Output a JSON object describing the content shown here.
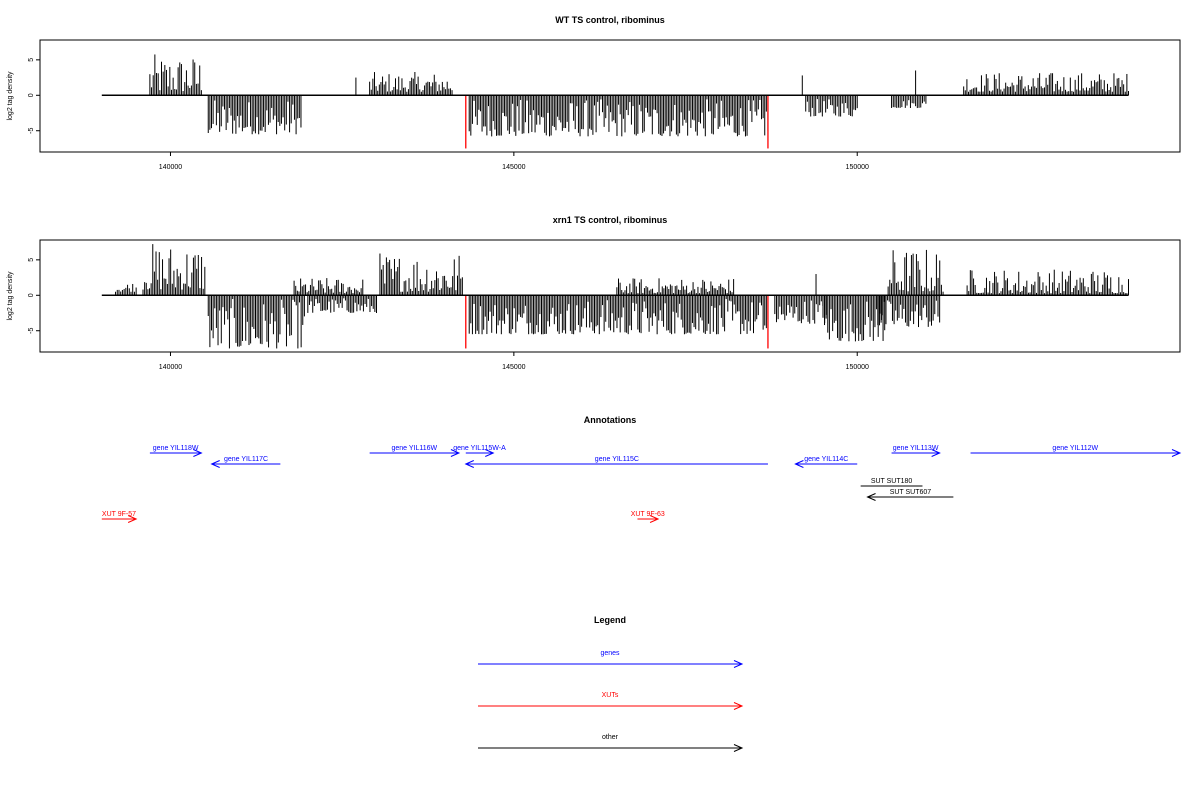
{
  "chart_data": [
    {
      "type": "bar",
      "title": "WT TS control, ribominus",
      "ylabel": "log2 tag density",
      "xlim": [
        138100,
        154700
      ],
      "ylim": [
        -8,
        7.8
      ],
      "x_ticks": [
        140000,
        145000,
        150000
      ],
      "x_tick_labels": [
        "140000",
        "145000",
        "150000"
      ],
      "y_ticks": [
        -5,
        0,
        5
      ],
      "y_tick_labels": [
        "-5",
        "0",
        "5"
      ],
      "baseline_range": [
        139000,
        153950
      ],
      "marker_color": "#ff0000",
      "markers": [
        {
          "x": 144300,
          "value": -7.5
        },
        {
          "x": 148700,
          "value": -7.5
        }
      ],
      "clusters": [
        {
          "from": 139700,
          "to": 140450,
          "min": 0.5,
          "max": 5.8
        },
        {
          "from": 140550,
          "to": 141900,
          "min": -5.5,
          "max": -0.5
        },
        {
          "from": 142700,
          "to": 142700,
          "min": 2.5,
          "max": 2.5
        },
        {
          "from": 142900,
          "to": 144100,
          "min": 0.5,
          "max": 3.3
        },
        {
          "from": 144350,
          "to": 148700,
          "min": -5.8,
          "max": -0.5
        },
        {
          "from": 149200,
          "to": 149200,
          "min": 2.8,
          "max": 2.8
        },
        {
          "from": 149250,
          "to": 150000,
          "min": -3.0,
          "max": -0.5
        },
        {
          "from": 150500,
          "to": 151000,
          "min": -1.8,
          "max": -0.5
        },
        {
          "from": 150850,
          "to": 150850,
          "min": 3.5,
          "max": 3.5
        },
        {
          "from": 151550,
          "to": 153950,
          "min": 0.5,
          "max": 3.3
        }
      ]
    },
    {
      "type": "bar",
      "title": "xrn1 TS control, ribominus",
      "ylabel": "log2 tag density",
      "xlim": [
        138100,
        154700
      ],
      "ylim": [
        -8,
        7.8
      ],
      "x_ticks": [
        140000,
        145000,
        150000
      ],
      "x_tick_labels": [
        "140000",
        "145000",
        "150000"
      ],
      "y_ticks": [
        -5,
        0,
        5
      ],
      "y_tick_labels": [
        "-5",
        "0",
        "5"
      ],
      "baseline_range": [
        139000,
        153950
      ],
      "marker_color": "#ff0000",
      "markers": [
        {
          "x": 144300,
          "value": -7.5
        },
        {
          "x": 148700,
          "value": -7.5
        }
      ],
      "clusters": [
        {
          "from": 139200,
          "to": 139500,
          "min": 0.5,
          "max": 2.0
        },
        {
          "from": 139600,
          "to": 140500,
          "min": 0.8,
          "max": 7.5
        },
        {
          "from": 140550,
          "to": 141950,
          "min": -7.5,
          "max": -0.5
        },
        {
          "from": 141800,
          "to": 142800,
          "min": 0.3,
          "max": 2.5
        },
        {
          "from": 142000,
          "to": 143000,
          "min": -2.5,
          "max": -0.3
        },
        {
          "from": 143050,
          "to": 144250,
          "min": 0.5,
          "max": 6.2
        },
        {
          "from": 144350,
          "to": 148700,
          "min": -5.5,
          "max": -0.5
        },
        {
          "from": 146500,
          "to": 148200,
          "min": 0.3,
          "max": 2.5
        },
        {
          "from": 148800,
          "to": 149550,
          "min": -4.0,
          "max": -0.3
        },
        {
          "from": 149500,
          "to": 150400,
          "min": -6.5,
          "max": -0.5
        },
        {
          "from": 149400,
          "to": 149400,
          "min": 3.0,
          "max": 3.0
        },
        {
          "from": 150300,
          "to": 151200,
          "min": -4.5,
          "max": -0.5
        },
        {
          "from": 150450,
          "to": 151250,
          "min": 0.5,
          "max": 6.8
        },
        {
          "from": 151600,
          "to": 153950,
          "min": 0.3,
          "max": 3.8
        }
      ]
    }
  ],
  "annotations": {
    "title": "Annotations",
    "xlim": [
      138100,
      154700
    ],
    "items": [
      {
        "label": "gene YIL118W",
        "from": 139700,
        "to": 140450,
        "dir": "right",
        "color": "#0000ff",
        "row": 1
      },
      {
        "label": "gene YIL117C",
        "from": 140600,
        "to": 141600,
        "dir": "left",
        "color": "#0000ff",
        "row": 2
      },
      {
        "label": "gene YIL116W",
        "from": 142900,
        "to": 144200,
        "dir": "right",
        "color": "#0000ff",
        "row": 1
      },
      {
        "label": "gene YIL115W-A",
        "from": 144300,
        "to": 144700,
        "dir": "right",
        "color": "#0000ff",
        "row": 1
      },
      {
        "label": "gene YIL115C",
        "from": 144300,
        "to": 148700,
        "dir": "left",
        "color": "#0000ff",
        "row": 2
      },
      {
        "label": "gene YIL114C",
        "from": 149100,
        "to": 150000,
        "dir": "left",
        "color": "#0000ff",
        "row": 2
      },
      {
        "label": "gene YIL113W",
        "from": 150500,
        "to": 151200,
        "dir": "right",
        "color": "#0000ff",
        "row": 1
      },
      {
        "label": "gene YIL112W",
        "from": 151650,
        "to": 154700,
        "dir": "right",
        "color": "#0000ff",
        "row": 1
      },
      {
        "label": "SUT SUT180",
        "from": 150050,
        "to": 150950,
        "dir": "none",
        "color": "#000000",
        "row": 4
      },
      {
        "label": "SUT SUT607",
        "from": 150150,
        "to": 151400,
        "dir": "left",
        "color": "#000000",
        "row": 5
      },
      {
        "label": "XUT 9F-57",
        "from": 139000,
        "to": 139500,
        "dir": "right",
        "color": "#ff0000",
        "row": 7
      },
      {
        "label": "XUT 9F-63",
        "from": 146800,
        "to": 147100,
        "dir": "right",
        "color": "#ff0000",
        "row": 7
      }
    ]
  },
  "legend": {
    "title": "Legend",
    "items": [
      {
        "label": "genes",
        "color": "#0000ff"
      },
      {
        "label": "XUTs",
        "color": "#ff0000"
      },
      {
        "label": "other",
        "color": "#000000"
      }
    ]
  }
}
